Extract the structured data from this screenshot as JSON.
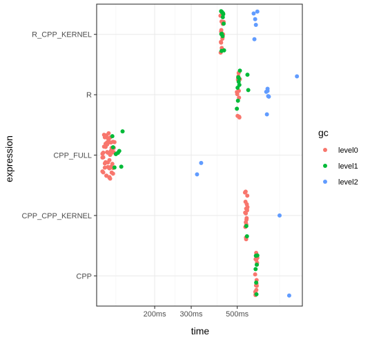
{
  "chart_data": {
    "type": "scatter",
    "title": "",
    "xlabel": "time",
    "ylabel": "expression",
    "x_scale": "log",
    "x_unit": "ms",
    "xlim": [
      105,
      1030
    ],
    "x_ticks": [
      {
        "value": 200,
        "label": "200ms"
      },
      {
        "value": 300,
        "label": "300ms"
      },
      {
        "value": 500,
        "label": "500ms"
      }
    ],
    "x_minor_ticks": [
      130,
      250,
      400,
      800
    ],
    "categories": [
      "CPP",
      "CPP_CPP_KERNEL",
      "CPP_FULL",
      "R",
      "R_CPP_KERNEL"
    ],
    "legend": {
      "title": "gc",
      "position": "right"
    },
    "grid": true,
    "series": [
      {
        "name": "level0",
        "color": "#F8766D",
        "points": [
          {
            "category": "R_CPP_KERNEL",
            "x": [
              420,
              425,
              415,
              430,
              418,
              422,
              428,
              416,
              424,
              419,
              426,
              421,
              417,
              423,
              427,
              420,
              418
            ]
          },
          {
            "category": "R",
            "x": [
              505,
              510,
              500,
              515,
              508,
              502,
              512,
              506,
              498,
              511,
              504,
              509
            ]
          },
          {
            "category": "CPP_FULL",
            "x": [
              112,
              115,
              118,
              120,
              122,
              125,
              128,
              113,
              116,
              119,
              121,
              124,
              127,
              114,
              117,
              123,
              126,
              112,
              118,
              121,
              124,
              115,
              119,
              122,
              126,
              113,
              117,
              120,
              123,
              125,
              116,
              121,
              114,
              118,
              122,
              127,
              112,
              119,
              124,
              116,
              120,
              123,
              115,
              118,
              126,
              113,
              121,
              117,
              124,
              119
            ]
          },
          {
            "category": "CPP_CPP_KERNEL",
            "x": [
              550,
              555,
              545,
              560,
              552,
              548,
              558,
              553,
              547,
              556,
              551,
              549,
              557,
              554,
              546,
              559,
              552,
              550
            ]
          },
          {
            "category": "CPP",
            "x": [
              615,
              620,
              610,
              625,
              618,
              612,
              622,
              617,
              613,
              621,
              616,
              619,
              614,
              623,
              611,
              618
            ]
          }
        ]
      },
      {
        "name": "level1",
        "color": "#00BA38",
        "points": [
          {
            "category": "R_CPP_KERNEL",
            "x": [
              422,
              428,
              418,
              425,
              432,
              420,
              426,
              419,
              424,
              430,
              421,
              427
            ]
          },
          {
            "category": "R",
            "x": [
              502,
              508,
              512,
              498,
              506,
              510,
              515,
              504,
              560,
              565
            ]
          },
          {
            "category": "CPP_FULL",
            "x": [
              125,
              130,
              135,
              140,
              128,
              133,
              138,
              126
            ]
          },
          {
            "category": "CPP_CPP_KERNEL",
            "x": [
              557,
              553
            ]
          },
          {
            "category": "CPP",
            "x": [
              617,
              621,
              613,
              625,
              619,
              615
            ]
          }
        ]
      },
      {
        "name": "level2",
        "color": "#619CFF",
        "points": [
          {
            "category": "R_CPP_KERNEL",
            "x": [
              600,
              610,
              615,
              625,
              605
            ]
          },
          {
            "category": "R",
            "x": [
              690,
              700,
              710,
              695,
              705,
              700,
              970
            ]
          },
          {
            "category": "CPP_FULL",
            "x": [
              320,
              335
            ]
          },
          {
            "category": "CPP_CPP_KERNEL",
            "x": [
              800
            ]
          },
          {
            "category": "CPP",
            "x": [
              890
            ]
          }
        ]
      }
    ]
  }
}
